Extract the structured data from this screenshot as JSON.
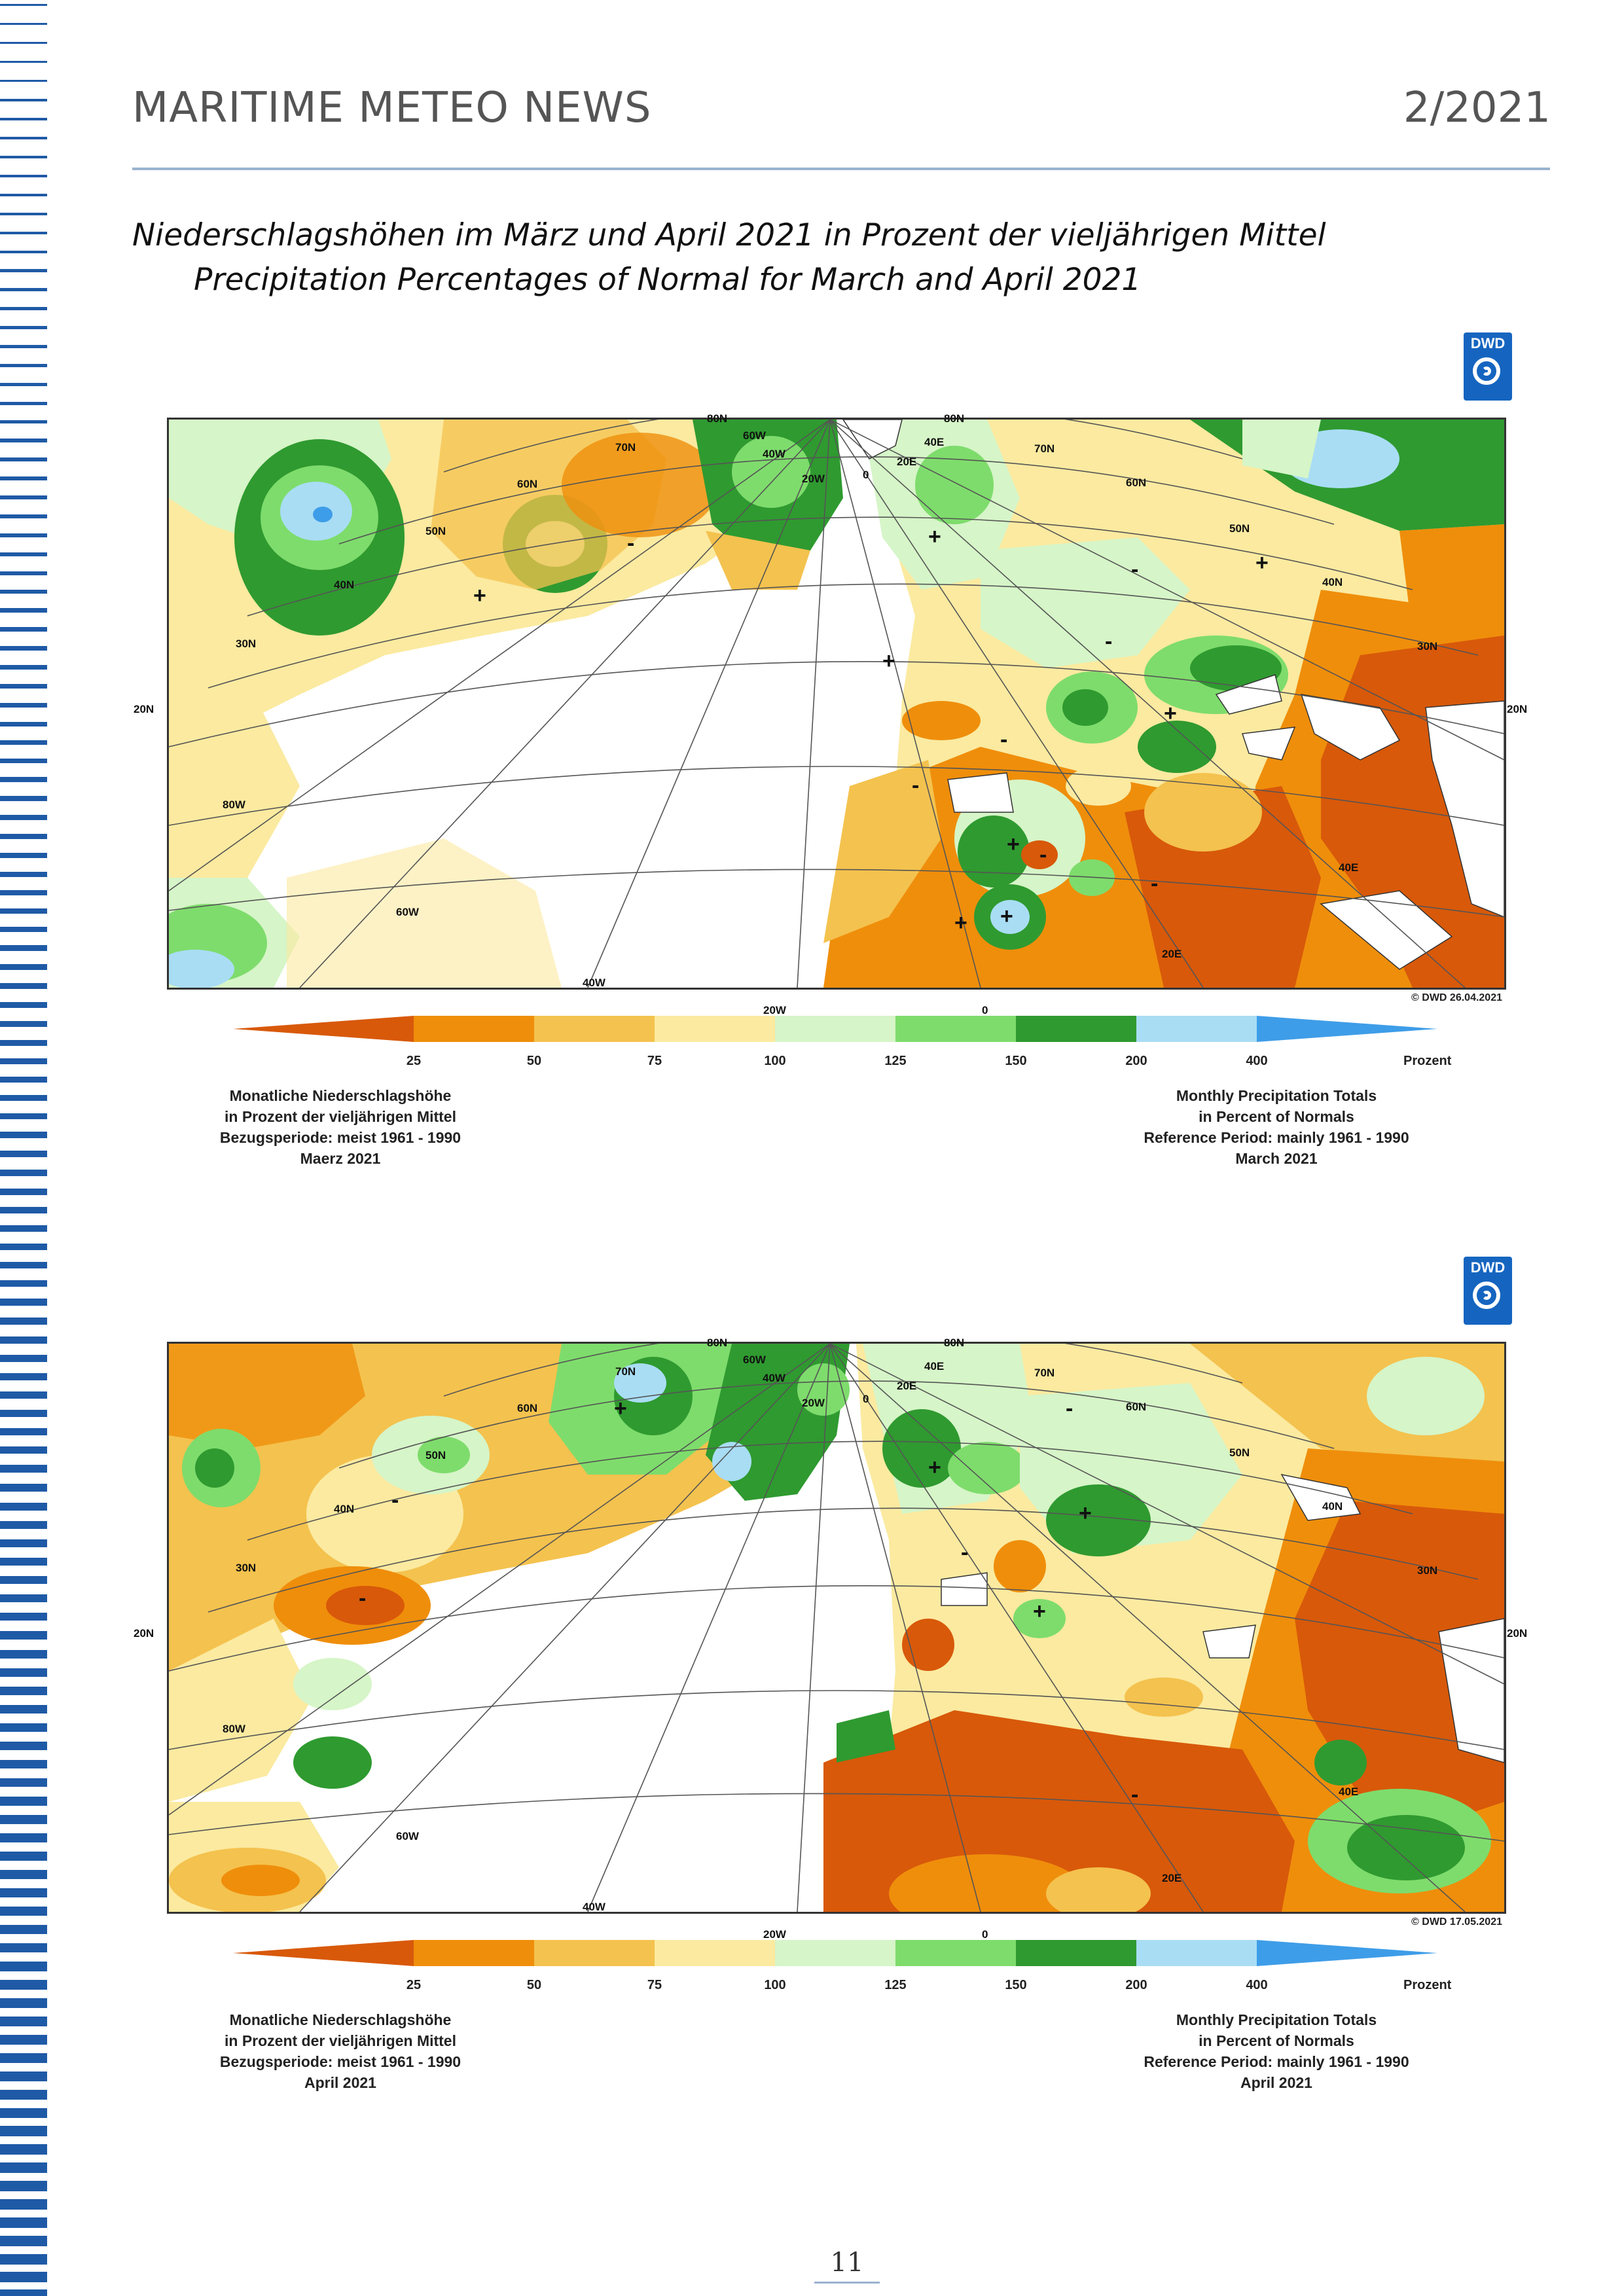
{
  "header": {
    "title": "MARITIME METEO NEWS",
    "issue": "2/2021"
  },
  "caption": {
    "german": "Niederschlagshöhen im März und April 2021 in Prozent der vieljährigen Mittel",
    "english": "Precipitation Percentages of Normal for March and April 2021"
  },
  "logo_text": "DWD",
  "colors": {
    "c_lt25": "#d8590a",
    "c_25_50": "#ef8e0b",
    "c_50_75": "#f4c24e",
    "c_75_100": "#fbeaa0",
    "c_100_125": "#d6f5c8",
    "c_125_150": "#7edc6c",
    "c_150_200": "#2f9a30",
    "c_200_400": "#a9ddf4",
    "c_gt400": "#3e9de8"
  },
  "legend": {
    "ticks": [
      "25",
      "50",
      "75",
      "100",
      "125",
      "150",
      "200",
      "400"
    ],
    "unit": "Prozent"
  },
  "map_labels": {
    "lat20_left": "20N",
    "lat20_right": "20N",
    "lat30_left": "30N",
    "lat30_right": "30N",
    "lat40_left": "40N",
    "lat40_right": "40N",
    "lat50_left": "50N",
    "lat50_right": "50N",
    "lat60_left": "60N",
    "lat60_right": "60N",
    "lat70_left": "70N",
    "lat70_right": "70N",
    "lat80_a": "80N",
    "lat80_b": "80N",
    "lon80w": "80W",
    "lon60w": "60W",
    "lon40w": "40W",
    "lon20w": "20W",
    "lon0": "0",
    "lon20e": "20E",
    "lon40e": "40E",
    "lon60w_top": "60W",
    "lon40w_top": "40W",
    "lon20w_top": "20W",
    "lon0_top": "0",
    "lon20e_top": "20E",
    "lon40e_top": "40E"
  },
  "figures": [
    {
      "copyright": "© DWD 26.04.2021",
      "left_notes": [
        "Monatliche Niederschlagshöhe",
        "in Prozent der vieljährigen Mittel",
        "Bezugsperiode: meist 1961 - 1990",
        "Maerz 2021"
      ],
      "right_notes": [
        "Monthly Precipitation Totals",
        "in Percent of Normals",
        "Reference Period: mainly 1961 - 1990",
        "March 2021"
      ]
    },
    {
      "copyright": "© DWD 17.05.2021",
      "left_notes": [
        "Monatliche Niederschlagshöhe",
        "in Prozent der vieljährigen Mittel",
        "Bezugsperiode: meist 1961 - 1990",
        "April 2021"
      ],
      "right_notes": [
        "Monthly Precipitation Totals",
        "in Percent of Normals",
        "Reference Period: mainly 1961 - 1990",
        "April 2021"
      ]
    }
  ],
  "page_number": "11"
}
